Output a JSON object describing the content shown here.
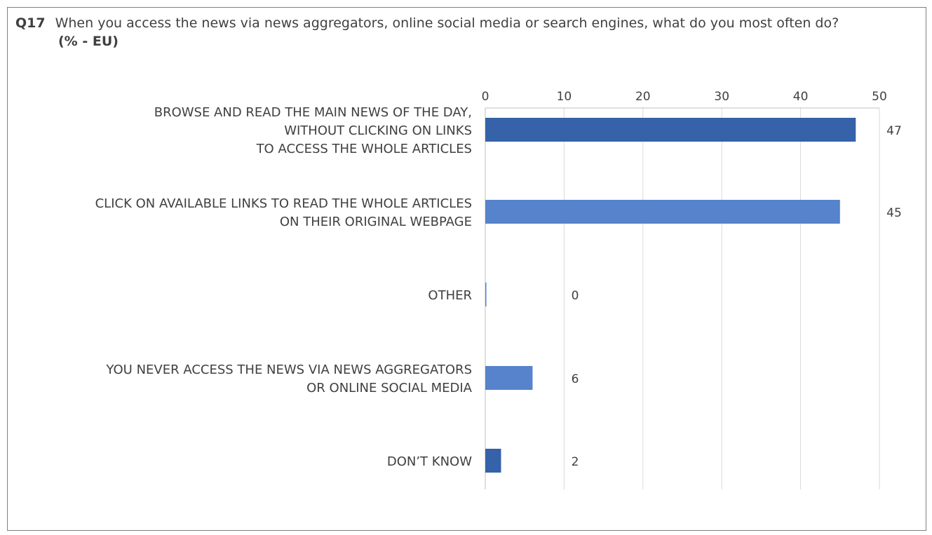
{
  "question": {
    "number": "Q17",
    "text": "When you access the news via news aggregators, online social media or search engines, what do you most often do?",
    "subtitle": "(% - EU)"
  },
  "chart_data": {
    "type": "bar",
    "orientation": "horizontal",
    "categories": [
      "BROWSE AND READ THE MAIN NEWS OF THE DAY, WITHOUT CLICKING ON LINKS TO ACCESS THE WHOLE ARTICLES",
      "CLICK ON AVAILABLE LINKS TO READ THE WHOLE ARTICLES ON THEIR ORIGINAL WEBPAGE",
      "OTHER",
      "YOU NEVER ACCESS THE NEWS VIA NEWS AGGREGATORS OR ONLINE SOCIAL MEDIA",
      "DON’T KNOW"
    ],
    "category_lines": [
      [
        "BROWSE AND READ THE MAIN NEWS OF THE DAY,",
        "WITHOUT CLICKING ON LINKS",
        "TO ACCESS THE WHOLE ARTICLES"
      ],
      [
        "CLICK ON AVAILABLE LINKS TO READ THE WHOLE ARTICLES",
        "ON THEIR ORIGINAL WEBPAGE"
      ],
      [
        "OTHER"
      ],
      [
        "YOU NEVER ACCESS THE NEWS VIA NEWS AGGREGATORS",
        "OR ONLINE SOCIAL MEDIA"
      ],
      [
        "DON’T KNOW"
      ]
    ],
    "values": [
      47,
      45,
      0,
      6,
      2
    ],
    "value_labels": [
      "47",
      "45",
      "0",
      "6",
      "2"
    ],
    "bar_colors": [
      "#3562a8",
      "#5683cb",
      "#5683cb",
      "#5683cb",
      "#3562a8"
    ],
    "xlim": [
      0,
      50
    ],
    "ticks": [
      0,
      10,
      20,
      30,
      40,
      50
    ],
    "tick_labels": [
      "0",
      "10",
      "20",
      "30",
      "40",
      "50"
    ],
    "axis_position": "top",
    "grid": true,
    "legend": false
  },
  "colors": {
    "text": "#404040",
    "gridline": "#d9d9d9",
    "axis": "#bfbfbf"
  }
}
